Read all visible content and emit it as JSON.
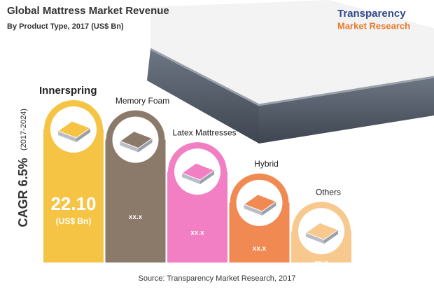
{
  "chart_data": {
    "type": "bar",
    "title": "Global Mattress Market Revenue",
    "subtitle": "By Product Type, 2017 (US$ Bn)",
    "categories": [
      "Innerspring",
      "Memory Foam",
      "Latex Mattresses",
      "Hybrid",
      "Others"
    ],
    "values": [
      22.1,
      20.4,
      15.1,
      9.9,
      5.2
    ],
    "value_labels": [
      "22.10",
      "xx.x",
      "xx.x",
      "xx.x",
      "xx.x"
    ],
    "colors": [
      "#f6c445",
      "#8b796a",
      "#f27ec3",
      "#f08a52",
      "#f8c98f"
    ],
    "unit_label": "(US$ Bn)",
    "annotation": "CAGR 6.5%",
    "annotation_period": "(2017-2024)",
    "source": "Source: Transparency Market Research, 2017"
  },
  "logo": {
    "name": "Transparency",
    "subname": "Market Research"
  }
}
